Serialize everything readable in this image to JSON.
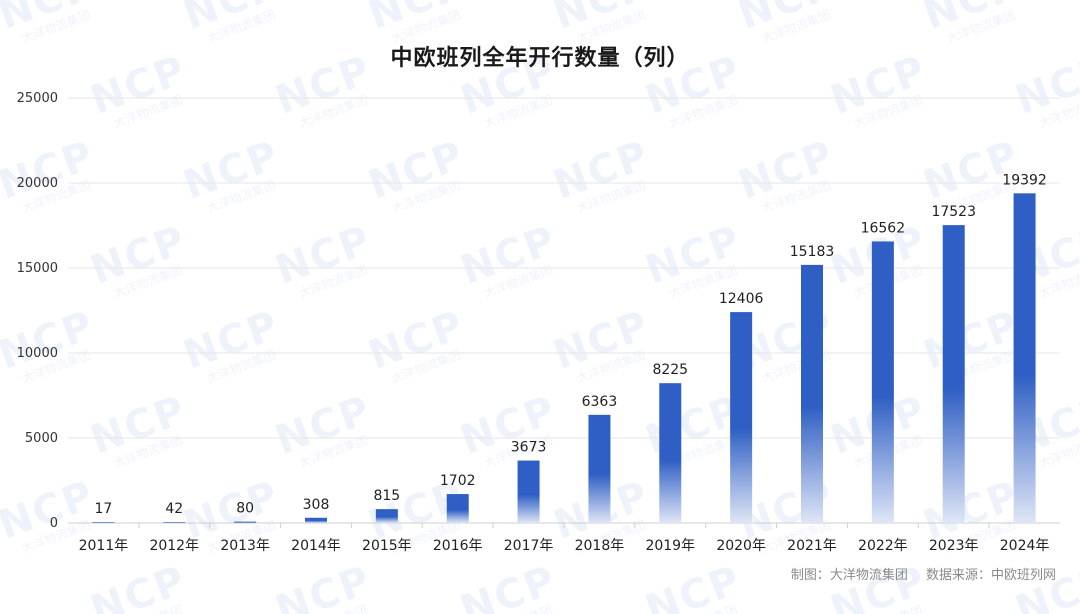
{
  "watermark": {
    "logo_text": "NCP",
    "sub_text": "大洋物流集团",
    "color": "#3b6bcf"
  },
  "credit": {
    "made_by": "制图：大洋物流集团",
    "source": "数据来源：中欧班列网"
  },
  "chart_data": {
    "type": "bar",
    "title": "中欧班列全年开行数量（列）",
    "xlabel": "",
    "ylabel": "",
    "categories": [
      "2011年",
      "2012年",
      "2013年",
      "2014年",
      "2015年",
      "2016年",
      "2017年",
      "2018年",
      "2019年",
      "2020年",
      "2021年",
      "2022年",
      "2023年",
      "2024年"
    ],
    "values": [
      17,
      42,
      80,
      308,
      815,
      1702,
      3673,
      6363,
      8225,
      12406,
      15183,
      16562,
      17523,
      19392
    ],
    "ylim": [
      0,
      25000
    ],
    "yticks": [
      0,
      5000,
      10000,
      15000,
      20000,
      25000
    ],
    "grid": true,
    "legend": "none",
    "colors": {
      "bar_top": "#2f5fc4",
      "bar_bottom": "#dfe6f6",
      "grid": "#e6e6e6"
    }
  }
}
